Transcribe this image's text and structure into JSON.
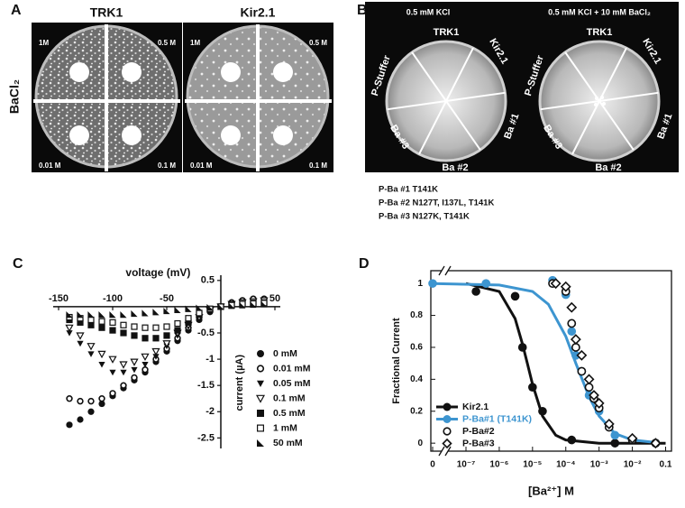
{
  "panel_labels": [
    "A",
    "B",
    "C",
    "D"
  ],
  "panel_a": {
    "row_label": "BaCl₂",
    "plates": [
      {
        "title": "TRK1",
        "quadrants": [
          "1M",
          "0.5 M",
          "0.01 M",
          "0.1 M"
        ]
      },
      {
        "title": "Kir2.1",
        "quadrants": [
          "1M",
          "0.5 M",
          "0.01 M",
          "0.1 M"
        ]
      }
    ]
  },
  "panel_b": {
    "plates": [
      {
        "title": "0.5 mM KCl",
        "sectors": [
          "TRK1",
          "Kir2.1",
          "Ba #1",
          "Ba #2",
          "Ba #3",
          "P-Stuffer"
        ]
      },
      {
        "title": "0.5 mM KCl + 10 mM BaCl₂",
        "sectors": [
          "TRK1",
          "Kir2.1",
          "Ba #1",
          "Ba #2",
          "Ba #3",
          "P-Stuffer"
        ]
      }
    ],
    "notes": [
      "P-Ba #1 T141K",
      "P-Ba #2 N127T, I137L, T141K",
      "P-Ba #3 N127K, T141K"
    ]
  },
  "chart_data": [
    {
      "type": "scatter",
      "x_label": "voltage (mV)",
      "y_label": "current (µA)",
      "xlim": [
        -155,
        55
      ],
      "ylim": [
        -2.7,
        0.6
      ],
      "xticks": [
        -150,
        -100,
        -50,
        50
      ],
      "yticks": [
        0.5,
        -0.5,
        -1,
        -1.5,
        -2,
        -2.5
      ],
      "legend": "right",
      "x": [
        -140,
        -130,
        -120,
        -110,
        -100,
        -90,
        -80,
        -70,
        -60,
        -50,
        -40,
        -30,
        -20,
        -10,
        0,
        10,
        20,
        30,
        40
      ],
      "series": [
        {
          "name": "0 mM",
          "color": "#111111",
          "marker": "circle",
          "values": [
            -2.25,
            -2.15,
            -2.0,
            -1.85,
            -1.7,
            -1.55,
            -1.4,
            -1.25,
            -1.05,
            -0.85,
            -0.65,
            -0.45,
            -0.25,
            -0.1,
            0,
            0.08,
            0.12,
            0.15,
            0.15
          ]
        },
        {
          "name": "0.01 mM",
          "color": "#111111",
          "marker": "circle-open",
          "values": [
            -1.75,
            -1.8,
            -1.8,
            -1.75,
            -1.65,
            -1.5,
            -1.35,
            -1.2,
            -1.0,
            -0.8,
            -0.6,
            -0.4,
            -0.2,
            -0.08,
            0,
            0.08,
            0.12,
            0.15,
            0.15
          ]
        },
        {
          "name": "0.05 mM",
          "color": "#111111",
          "marker": "triangle-down",
          "values": [
            -0.5,
            -0.7,
            -0.9,
            -1.1,
            -1.25,
            -1.25,
            -1.2,
            -1.1,
            -0.95,
            -0.75,
            -0.55,
            -0.38,
            -0.2,
            -0.07,
            0,
            0.05,
            0.08,
            0.1,
            0.12
          ]
        },
        {
          "name": "0.1 mM",
          "color": "#111111",
          "marker": "triangle-down-open",
          "values": [
            -0.4,
            -0.55,
            -0.75,
            -0.9,
            -1.0,
            -1.1,
            -1.05,
            -0.95,
            -0.85,
            -0.7,
            -0.5,
            -0.35,
            -0.2,
            -0.07,
            0,
            0.05,
            0.08,
            0.1,
            0.12
          ]
        },
        {
          "name": "0.5 mM",
          "color": "#111111",
          "marker": "square",
          "values": [
            -0.25,
            -0.3,
            -0.35,
            -0.4,
            -0.45,
            -0.5,
            -0.55,
            -0.6,
            -0.6,
            -0.55,
            -0.45,
            -0.3,
            -0.15,
            -0.05,
            0,
            0.03,
            0.05,
            0.07,
            0.08
          ]
        },
        {
          "name": "1 mM",
          "color": "#111111",
          "marker": "square-open",
          "values": [
            -0.2,
            -0.22,
            -0.25,
            -0.28,
            -0.3,
            -0.35,
            -0.38,
            -0.4,
            -0.4,
            -0.38,
            -0.32,
            -0.22,
            -0.12,
            -0.04,
            0,
            0.03,
            0.05,
            0.06,
            0.07
          ]
        },
        {
          "name": "50 mM",
          "color": "#111111",
          "marker": "triangle-half",
          "values": [
            -0.15,
            -0.15,
            -0.15,
            -0.15,
            -0.15,
            -0.15,
            -0.13,
            -0.12,
            -0.1,
            -0.08,
            -0.06,
            -0.04,
            -0.02,
            -0.01,
            0,
            0.02,
            0.03,
            0.04,
            0.05
          ]
        }
      ]
    },
    {
      "type": "line",
      "x_label": "[Ba²⁺] M",
      "y_label": "Fractional Current",
      "xscale": "log",
      "xlim": [
        0,
        0.15
      ],
      "ylim": [
        -0.05,
        1.08
      ],
      "xticks": [
        0,
        {
          "value": 1e-07,
          "label": "10⁻⁷"
        },
        {
          "value": 1e-06,
          "label": "10⁻⁶"
        },
        {
          "value": 1e-05,
          "label": "10⁻⁵"
        },
        {
          "value": 0.0001,
          "label": "10⁻⁴"
        },
        {
          "value": 0.001,
          "label": "10⁻³"
        },
        {
          "value": 0.01,
          "label": "10⁻²"
        },
        0.1
      ],
      "yticks": [
        0,
        0.2,
        0.4,
        0.6,
        0.8,
        1
      ],
      "legend": "lower left",
      "series": [
        {
          "name": "Kir2.1",
          "color": "#111111",
          "marker": "circle",
          "x": [
            2e-07,
            3e-06,
            5e-06,
            1e-05,
            2e-05,
            0.00015,
            0.003,
            0.05
          ],
          "values": [
            0.95,
            0.92,
            0.6,
            0.35,
            0.2,
            0.02,
            0.0,
            0.0
          ],
          "fit_x": [
            1e-07,
            1e-06,
            3e-06,
            5e-06,
            7e-06,
            1e-05,
            2e-05,
            5e-05,
            0.0001,
            0.001,
            0.1
          ],
          "fit_values": [
            1.0,
            0.95,
            0.78,
            0.62,
            0.5,
            0.37,
            0.17,
            0.05,
            0.02,
            0,
            0
          ]
        },
        {
          "name": "P-Ba#1 (T141K)",
          "color": "#3d95d0",
          "marker": "circle",
          "x": [
            0,
            4e-07,
            4e-05,
            0.0001,
            0.00015,
            0.0002,
            0.0003,
            0.0005,
            0.001,
            0.003,
            0.05
          ],
          "values": [
            1.0,
            1.0,
            1.02,
            0.93,
            0.7,
            0.55,
            0.45,
            0.3,
            0.2,
            0.05,
            0.0
          ],
          "fit_x": [
            0,
            1e-06,
            1e-05,
            3e-05,
            0.0001,
            0.0002,
            0.0005,
            0.001,
            0.003,
            0.01,
            0.05
          ],
          "fit_values": [
            1,
            0.99,
            0.95,
            0.87,
            0.67,
            0.5,
            0.29,
            0.17,
            0.06,
            0.02,
            0.004
          ]
        },
        {
          "name": "P-Ba#2",
          "color": "#111111",
          "marker": "circle-open",
          "x": [
            4e-05,
            0.0001,
            0.00015,
            0.0002,
            0.0003,
            0.0005,
            0.0007,
            0.001,
            0.002,
            0.01,
            0.05
          ],
          "values": [
            1.0,
            0.95,
            0.75,
            0.6,
            0.45,
            0.35,
            0.28,
            0.22,
            0.1,
            0.02,
            0.0
          ]
        },
        {
          "name": "P-Ba#3",
          "color": "#111111",
          "marker": "diamond-open",
          "x": [
            5e-05,
            0.0001,
            0.00015,
            0.0002,
            0.0003,
            0.0005,
            0.0007,
            0.001,
            0.002,
            0.01,
            0.05
          ],
          "values": [
            1.0,
            0.98,
            0.85,
            0.65,
            0.55,
            0.4,
            0.3,
            0.25,
            0.12,
            0.03,
            0.0
          ]
        }
      ]
    }
  ]
}
